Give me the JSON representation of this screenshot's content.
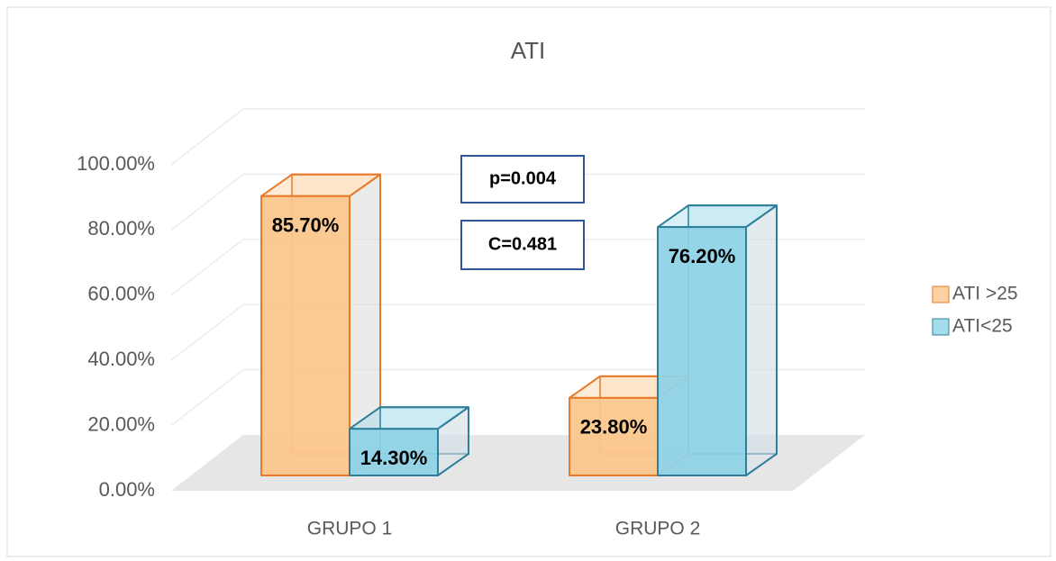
{
  "chart_data": {
    "type": "bar3d",
    "title": "ATI",
    "categories": [
      "GRUPO 1",
      "GRUPO 2"
    ],
    "series": [
      {
        "name": "ATI >25",
        "color": "#fbc68c",
        "edge": "#e87a2a",
        "values": [
          85.7,
          23.8
        ],
        "value_labels": [
          "85.70%",
          "23.80%"
        ]
      },
      {
        "name": "ATI<25",
        "color": "#8fd3e6",
        "edge": "#2f7f9a",
        "values": [
          14.3,
          76.2
        ],
        "value_labels": [
          "14.30%",
          "76.20%"
        ]
      }
    ],
    "ylim": [
      0,
      100
    ],
    "yticks": [
      {
        "value": 0,
        "label": "0.00%"
      },
      {
        "value": 20,
        "label": "20.00%"
      },
      {
        "value": 40,
        "label": "40.00%"
      },
      {
        "value": 60,
        "label": "60.00%"
      },
      {
        "value": 80,
        "label": "80.00%"
      },
      {
        "value": 100,
        "label": "100.00%"
      }
    ],
    "annotations": [
      "p=0.004",
      "C=0.481"
    ],
    "grid": true,
    "legend": "right"
  }
}
